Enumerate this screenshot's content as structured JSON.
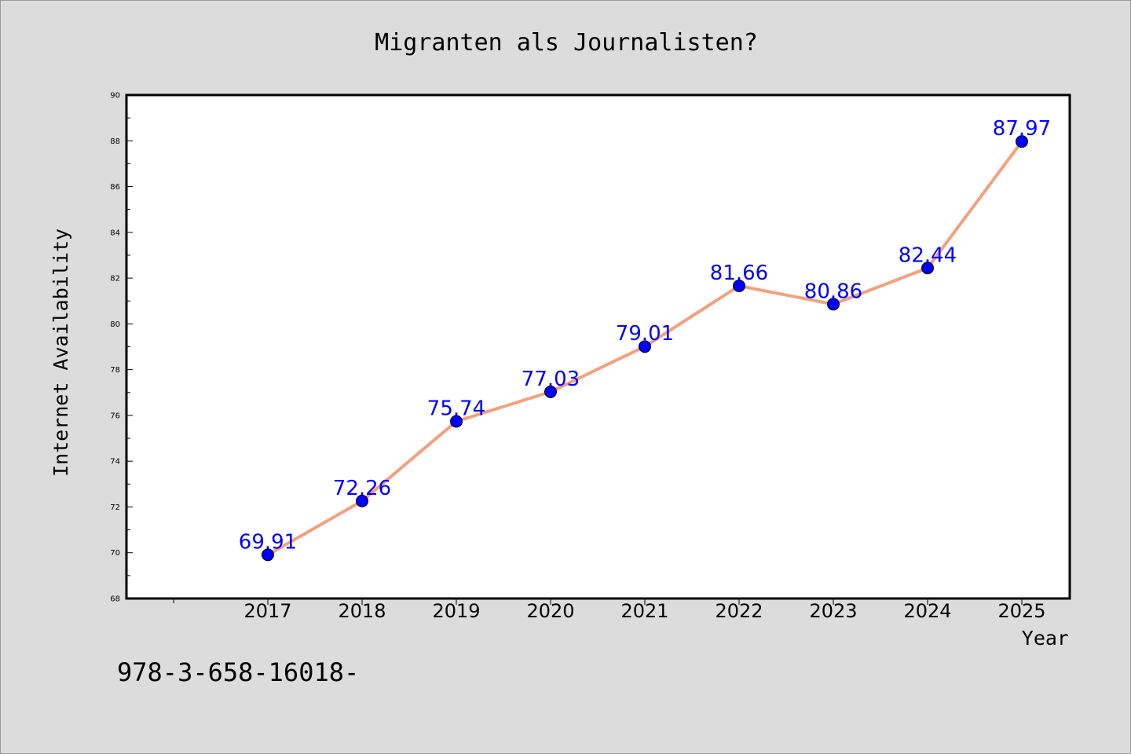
{
  "chart_data": {
    "type": "line",
    "title": "Migranten als Journalisten?",
    "xlabel": "Year",
    "ylabel": "Internet Availability",
    "categories": [
      "2017",
      "2018",
      "2019",
      "2020",
      "2021",
      "2022",
      "2023",
      "2024",
      "2025"
    ],
    "series": [
      {
        "values": [
          69.91,
          72.26,
          75.74,
          77.03,
          79.01,
          81.66,
          80.86,
          82.44,
          87.97
        ],
        "data_labels": [
          "69.91",
          "72.26",
          "75.74",
          "77.03",
          "79.01",
          "81.66",
          "80.86",
          "82.44",
          "87.97"
        ],
        "line_color": "#f4a07f",
        "marker_color": "#0000ff"
      }
    ],
    "ylim": [
      68,
      90
    ],
    "y_ticks": [
      "68",
      "70",
      "72",
      "74",
      "76",
      "78",
      "80",
      "82",
      "84",
      "86",
      "88",
      "90"
    ],
    "grid": false,
    "legend": "none"
  },
  "footer_text": "978-3-658-16018-"
}
